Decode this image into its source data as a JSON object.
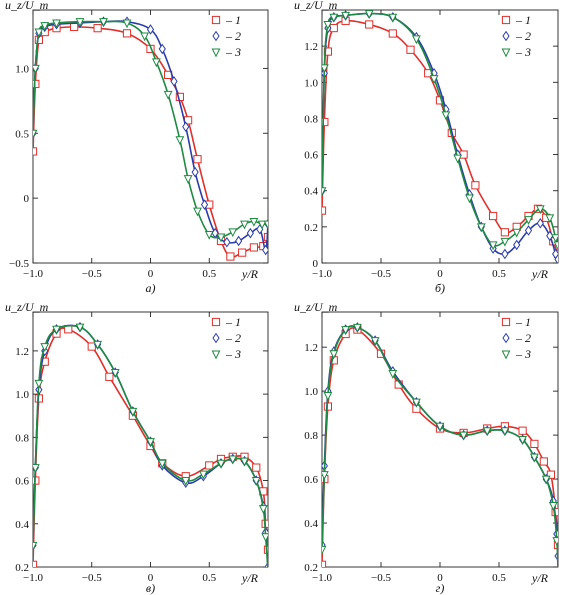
{
  "figure": {
    "legend": [
      {
        "label": "– 1",
        "marker": "square",
        "color": "#e0302c"
      },
      {
        "label": "– 2",
        "marker": "diamond",
        "color": "#2b3da8"
      },
      {
        "label": "– 3",
        "marker": "triangle-down",
        "color": "#1f8a43"
      }
    ]
  },
  "chart_data": [
    {
      "type": "line",
      "panel_label": "а)",
      "ylabel": "u_z/U_m",
      "xlabel": "y/R",
      "xlim": [
        -1.0,
        1.0
      ],
      "ylim": [
        -0.5,
        1.45
      ],
      "xticks": [
        -1.0,
        -0.5,
        0,
        0.5
      ],
      "xtick_labels": [
        "−1.0",
        "−0.5",
        "0",
        "0.5"
      ],
      "yticks": [
        -0.5,
        0,
        0.5,
        1.0
      ],
      "ytick_labels": [
        "−0.5",
        "0",
        "0.5",
        "1.0"
      ],
      "legend_position": "top-right",
      "series": [
        {
          "name": "1",
          "color": "#e0302c",
          "marker": "square",
          "x": [
            -1.0,
            -0.98,
            -0.95,
            -0.9,
            -0.8,
            -0.65,
            -0.45,
            -0.2,
            0.0,
            0.15,
            0.25,
            0.32,
            0.4,
            0.5,
            0.6,
            0.68,
            0.78,
            0.88,
            0.96,
            1.0
          ],
          "y": [
            0.36,
            0.88,
            1.22,
            1.28,
            1.31,
            1.32,
            1.31,
            1.27,
            1.15,
            0.95,
            0.78,
            0.6,
            0.3,
            -0.05,
            -0.33,
            -0.45,
            -0.42,
            -0.38,
            -0.37,
            -0.3
          ]
        },
        {
          "name": "2",
          "color": "#2b3da8",
          "marker": "diamond",
          "x": [
            -1.0,
            -0.98,
            -0.95,
            -0.9,
            -0.8,
            -0.6,
            -0.4,
            -0.2,
            0.0,
            0.1,
            0.2,
            0.3,
            0.38,
            0.46,
            0.55,
            0.65,
            0.75,
            0.85,
            0.93,
            0.98,
            1.0
          ],
          "y": [
            0.5,
            1.0,
            1.27,
            1.32,
            1.34,
            1.35,
            1.36,
            1.36,
            1.3,
            1.15,
            0.9,
            0.55,
            0.2,
            -0.05,
            -0.27,
            -0.34,
            -0.33,
            -0.27,
            -0.24,
            -0.4,
            -0.2
          ]
        },
        {
          "name": "3",
          "color": "#1f8a43",
          "marker": "triangle-down",
          "x": [
            -1.0,
            -0.98,
            -0.95,
            -0.9,
            -0.8,
            -0.6,
            -0.4,
            -0.2,
            -0.05,
            0.05,
            0.15,
            0.25,
            0.32,
            0.4,
            0.5,
            0.6,
            0.7,
            0.8,
            0.88,
            0.95,
            1.0
          ],
          "y": [
            0.5,
            1.0,
            1.28,
            1.33,
            1.35,
            1.36,
            1.36,
            1.35,
            1.25,
            1.05,
            0.8,
            0.45,
            0.15,
            -0.1,
            -0.28,
            -0.3,
            -0.26,
            -0.2,
            -0.18,
            -0.2,
            -0.2
          ]
        }
      ]
    },
    {
      "type": "line",
      "panel_label": "б)",
      "ylabel": "u_z/U_m",
      "xlabel": "y/R",
      "xlim": [
        -1.0,
        1.0
      ],
      "ylim": [
        0.0,
        1.4
      ],
      "xticks": [
        -1.0,
        -0.5,
        0,
        0.5
      ],
      "xtick_labels": [
        "−1.0",
        "−0.5",
        "0",
        "0.5"
      ],
      "yticks": [
        0,
        0.2,
        0.4,
        0.6,
        0.8,
        1.0,
        1.2
      ],
      "ytick_labels": [
        "0",
        "0.2",
        "0.4",
        "0.6",
        "0.8",
        "1.0",
        "1.2"
      ],
      "legend_position": "top-right",
      "series": [
        {
          "name": "1",
          "color": "#e0302c",
          "marker": "square",
          "x": [
            -1.0,
            -0.98,
            -0.95,
            -0.9,
            -0.8,
            -0.6,
            -0.4,
            -0.25,
            -0.1,
            0.0,
            0.1,
            0.2,
            0.3,
            0.45,
            0.55,
            0.65,
            0.75,
            0.83,
            0.9,
            0.96,
            1.0
          ],
          "y": [
            0.29,
            0.78,
            1.17,
            1.3,
            1.34,
            1.32,
            1.27,
            1.18,
            1.05,
            0.9,
            0.72,
            0.6,
            0.43,
            0.26,
            0.17,
            0.2,
            0.26,
            0.3,
            0.25,
            0.12,
            0.05
          ]
        },
        {
          "name": "2",
          "color": "#2b3da8",
          "marker": "diamond",
          "x": [
            -1.0,
            -0.98,
            -0.95,
            -0.9,
            -0.8,
            -0.6,
            -0.4,
            -0.2,
            -0.05,
            0.05,
            0.15,
            0.25,
            0.35,
            0.45,
            0.55,
            0.65,
            0.75,
            0.85,
            0.93,
            0.98,
            1.0
          ],
          "y": [
            0.4,
            1.05,
            1.3,
            1.36,
            1.37,
            1.38,
            1.36,
            1.25,
            1.05,
            0.85,
            0.6,
            0.38,
            0.2,
            0.08,
            0.05,
            0.1,
            0.18,
            0.22,
            0.15,
            0.05,
            0.02
          ]
        },
        {
          "name": "3",
          "color": "#1f8a43",
          "marker": "triangle-down",
          "x": [
            -1.0,
            -0.98,
            -0.95,
            -0.9,
            -0.8,
            -0.6,
            -0.4,
            -0.2,
            -0.05,
            0.05,
            0.15,
            0.25,
            0.35,
            0.45,
            0.55,
            0.65,
            0.75,
            0.85,
            0.93,
            0.98,
            1.0
          ],
          "y": [
            0.4,
            1.08,
            1.32,
            1.36,
            1.37,
            1.38,
            1.36,
            1.24,
            1.02,
            0.82,
            0.58,
            0.36,
            0.2,
            0.1,
            0.12,
            0.17,
            0.24,
            0.3,
            0.25,
            0.14,
            0.1
          ]
        }
      ]
    },
    {
      "type": "line",
      "panel_label": "в)",
      "ylabel": "u_z/U_m",
      "xlabel": "y/R",
      "xlim": [
        -1.0,
        1.0
      ],
      "ylim": [
        0.2,
        1.38
      ],
      "xticks": [
        -1.0,
        -0.5,
        0,
        0.5
      ],
      "xtick_labels": [
        "−1.0",
        "−0.5",
        "0",
        "0.5"
      ],
      "yticks": [
        0.2,
        0.4,
        0.6,
        0.8,
        1.0,
        1.2
      ],
      "ytick_labels": [
        "0.2",
        "0.4",
        "0.6",
        "0.8",
        "1.0",
        "1.2"
      ],
      "legend_position": "top-right",
      "series": [
        {
          "name": "1",
          "color": "#e0302c",
          "marker": "square",
          "x": [
            -1.0,
            -0.98,
            -0.95,
            -0.9,
            -0.8,
            -0.7,
            -0.5,
            -0.35,
            -0.15,
            0.0,
            0.1,
            0.3,
            0.5,
            0.6,
            0.7,
            0.8,
            0.9,
            0.96,
            0.98,
            1.0
          ],
          "y": [
            0.21,
            0.6,
            0.98,
            1.15,
            1.28,
            1.3,
            1.22,
            1.08,
            0.9,
            0.76,
            0.68,
            0.62,
            0.67,
            0.7,
            0.71,
            0.71,
            0.66,
            0.55,
            0.4,
            0.28
          ]
        },
        {
          "name": "2",
          "color": "#2b3da8",
          "marker": "diamond",
          "x": [
            -1.0,
            -0.98,
            -0.95,
            -0.9,
            -0.8,
            -0.6,
            -0.45,
            -0.3,
            -0.15,
            0.0,
            0.1,
            0.3,
            0.45,
            0.6,
            0.7,
            0.8,
            0.9,
            0.96,
            0.98,
            1.0
          ],
          "y": [
            0.3,
            0.66,
            1.02,
            1.2,
            1.3,
            1.31,
            1.23,
            1.1,
            0.92,
            0.78,
            0.67,
            0.59,
            0.62,
            0.68,
            0.7,
            0.69,
            0.6,
            0.48,
            0.36,
            0.2
          ]
        },
        {
          "name": "3",
          "color": "#1f8a43",
          "marker": "triangle-down",
          "x": [
            -1.0,
            -0.98,
            -0.95,
            -0.9,
            -0.8,
            -0.6,
            -0.45,
            -0.3,
            -0.15,
            0.0,
            0.1,
            0.3,
            0.45,
            0.6,
            0.7,
            0.8,
            0.9,
            0.96,
            0.98,
            1.0
          ],
          "y": [
            0.3,
            0.66,
            1.05,
            1.22,
            1.3,
            1.31,
            1.23,
            1.1,
            0.92,
            0.78,
            0.68,
            0.6,
            0.63,
            0.68,
            0.7,
            0.69,
            0.6,
            0.47,
            0.34,
            0.18
          ]
        }
      ]
    },
    {
      "type": "line",
      "panel_label": "г)",
      "ylabel": "u_z/U_m",
      "xlabel": "y/R",
      "xlim": [
        -1.0,
        1.0
      ],
      "ylim": [
        0.2,
        1.36
      ],
      "xticks": [
        -1.0,
        -0.5,
        0,
        0.5
      ],
      "xtick_labels": [
        "−1.0",
        "−0.5",
        "0",
        "0.5"
      ],
      "yticks": [
        0.2,
        0.4,
        0.6,
        0.8,
        1.0,
        1.2
      ],
      "ytick_labels": [
        "0.2",
        "0.4",
        "0.6",
        "0.8",
        "1.0",
        "1.2"
      ],
      "legend_position": "top-right",
      "series": [
        {
          "name": "1",
          "color": "#e0302c",
          "marker": "square",
          "x": [
            -1.0,
            -0.98,
            -0.95,
            -0.9,
            -0.8,
            -0.7,
            -0.5,
            -0.35,
            -0.2,
            0.0,
            0.2,
            0.4,
            0.55,
            0.7,
            0.8,
            0.88,
            0.94,
            0.98,
            1.0
          ],
          "y": [
            0.21,
            0.6,
            0.93,
            1.14,
            1.26,
            1.28,
            1.17,
            1.03,
            0.92,
            0.83,
            0.81,
            0.83,
            0.84,
            0.82,
            0.76,
            0.68,
            0.62,
            0.45,
            0.3
          ]
        },
        {
          "name": "2",
          "color": "#2b3da8",
          "marker": "diamond",
          "x": [
            -1.0,
            -0.98,
            -0.95,
            -0.9,
            -0.8,
            -0.7,
            -0.55,
            -0.4,
            -0.2,
            0.0,
            0.2,
            0.4,
            0.55,
            0.7,
            0.8,
            0.9,
            0.96,
            0.99,
            1.0
          ],
          "y": [
            0.3,
            0.66,
            1.0,
            1.18,
            1.28,
            1.29,
            1.23,
            1.09,
            0.95,
            0.84,
            0.8,
            0.82,
            0.82,
            0.78,
            0.7,
            0.6,
            0.5,
            0.35,
            0.25
          ]
        },
        {
          "name": "3",
          "color": "#1f8a43",
          "marker": "triangle-down",
          "x": [
            -1.0,
            -0.98,
            -0.95,
            -0.9,
            -0.8,
            -0.7,
            -0.55,
            -0.4,
            -0.2,
            0.0,
            0.2,
            0.4,
            0.55,
            0.7,
            0.8,
            0.9,
            0.96,
            0.99,
            1.0
          ],
          "y": [
            0.28,
            0.62,
            0.98,
            1.17,
            1.28,
            1.29,
            1.23,
            1.08,
            0.95,
            0.84,
            0.8,
            0.82,
            0.82,
            0.78,
            0.7,
            0.6,
            0.48,
            0.32,
            0.18
          ]
        }
      ]
    }
  ]
}
